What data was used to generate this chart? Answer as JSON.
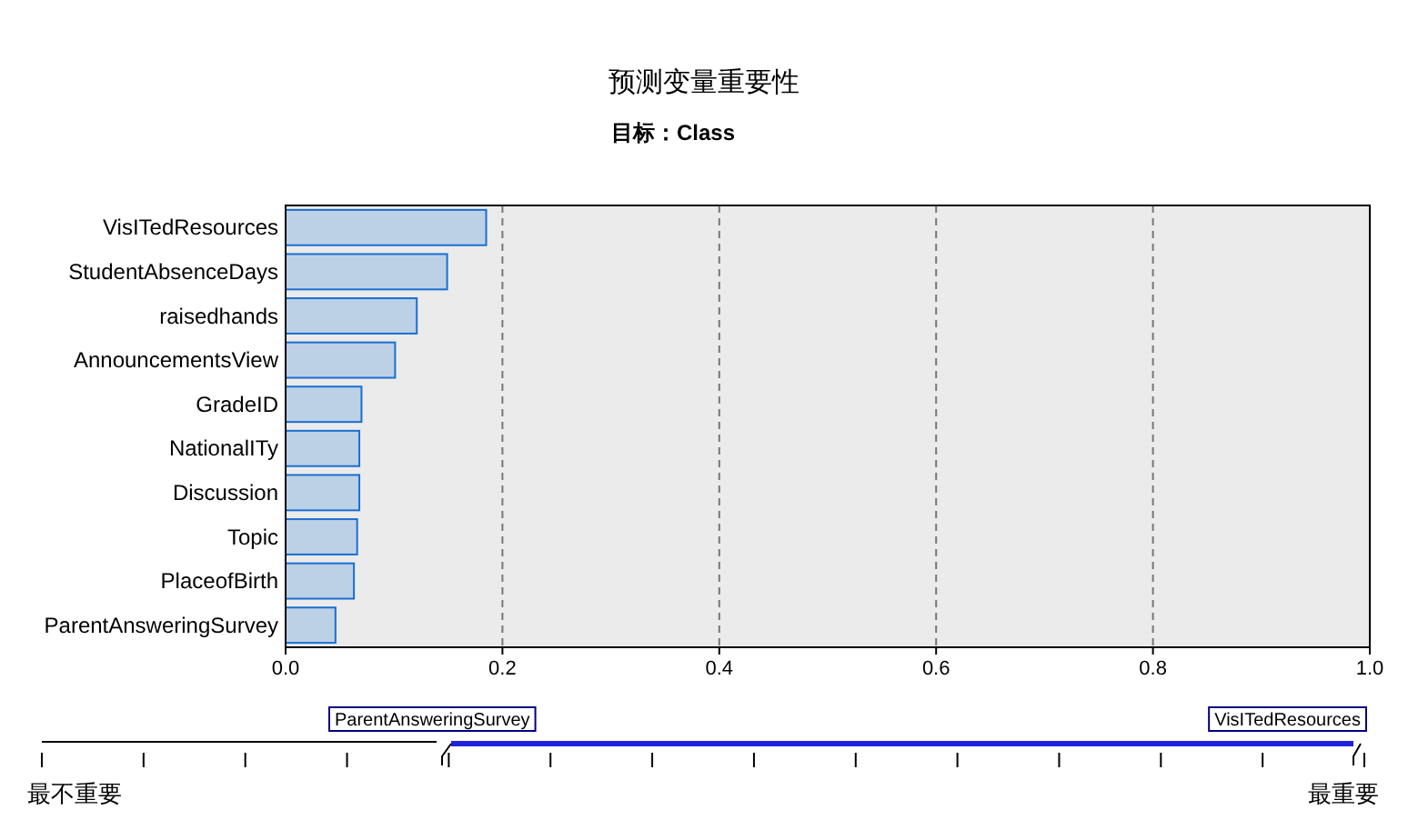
{
  "chart_data": {
    "type": "bar",
    "orientation": "horizontal",
    "title": "预测变量重要性",
    "subtitle": "目标：Class",
    "categories": [
      "VisITedResources",
      "StudentAbsenceDays",
      "raisedhands",
      "AnnouncementsView",
      "GradeID",
      "NationalITy",
      "Discussion",
      "Topic",
      "PlaceofBirth",
      "ParentAnsweringSurvey"
    ],
    "series": [
      {
        "color": "#bcd0e6",
        "values": [
          0.185,
          0.149,
          0.121,
          0.101,
          0.07,
          0.068,
          0.068,
          0.066,
          0.063,
          0.046
        ]
      }
    ],
    "xlim": [
      0,
      1
    ],
    "xticks": [
      {
        "value": 0,
        "label": "0.0"
      },
      0.2,
      0.4,
      0.6,
      0.8,
      {
        "value": 1,
        "label": "1.0"
      }
    ],
    "grid": "x",
    "annotations": [
      "ParentAnsweringSurvey",
      "VisITedResources",
      "最不重要",
      "最重要"
    ]
  }
}
